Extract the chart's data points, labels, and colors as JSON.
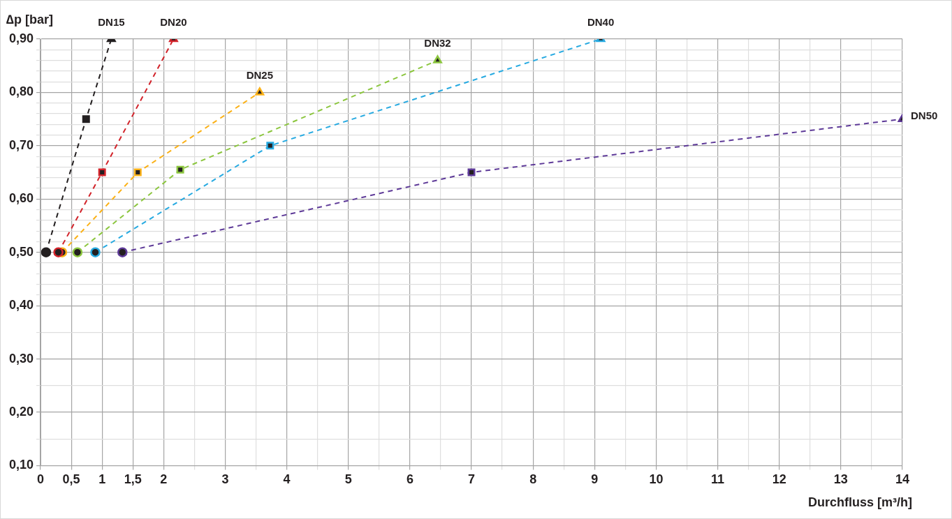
{
  "chart_data": {
    "type": "line",
    "xlabel": "Durchfluss [m³/h]",
    "ylabel": "∆p [bar]",
    "xlim": [
      0,
      14
    ],
    "ylim": [
      0.1,
      0.9
    ],
    "xticks": [
      0,
      {
        "value": 0.5,
        "label": "0,5"
      },
      1,
      {
        "value": 1.5,
        "label": "1,5"
      },
      2,
      {
        "value": 2.5,
        "label": null
      },
      3,
      {
        "value": 3.5,
        "label": null
      },
      4,
      {
        "value": 4.5,
        "label": null
      },
      5,
      {
        "value": 5.5,
        "label": null
      },
      6,
      {
        "value": 6.5,
        "label": null
      },
      7,
      {
        "value": 7.5,
        "label": null
      },
      8,
      {
        "value": 8.5,
        "label": null
      },
      9,
      {
        "value": 9.5,
        "label": null
      },
      10,
      {
        "value": 10.5,
        "label": null
      },
      11,
      {
        "value": 11.5,
        "label": null
      },
      12,
      {
        "value": 12.5,
        "label": null
      },
      13,
      {
        "value": 13.5,
        "label": null
      },
      14
    ],
    "yticks": [
      {
        "value": 0.1,
        "label": "0,10"
      },
      {
        "value": 0.15,
        "label": null
      },
      {
        "value": 0.2,
        "label": "0,20"
      },
      {
        "value": 0.25,
        "label": null
      },
      {
        "value": 0.3,
        "label": "0,30"
      },
      {
        "value": 0.35,
        "label": null
      },
      {
        "value": 0.4,
        "label": "0,40"
      },
      {
        "value": 0.42,
        "label": null
      },
      {
        "value": 0.44,
        "label": null
      },
      {
        "value": 0.46,
        "label": null
      },
      {
        "value": 0.48,
        "label": null
      },
      {
        "value": 0.5,
        "label": "0,50"
      },
      {
        "value": 0.52,
        "label": null
      },
      {
        "value": 0.54,
        "label": null
      },
      {
        "value": 0.56,
        "label": null
      },
      {
        "value": 0.58,
        "label": null
      },
      {
        "value": 0.6,
        "label": "0,60"
      },
      {
        "value": 0.62,
        "label": null
      },
      {
        "value": 0.64,
        "label": null
      },
      {
        "value": 0.66,
        "label": null
      },
      {
        "value": 0.68,
        "label": null
      },
      {
        "value": 0.7,
        "label": "0,70"
      },
      {
        "value": 0.72,
        "label": null
      },
      {
        "value": 0.74,
        "label": null
      },
      {
        "value": 0.76,
        "label": null
      },
      {
        "value": 0.78,
        "label": null
      },
      {
        "value": 0.8,
        "label": "0,80"
      },
      {
        "value": 0.82,
        "label": null
      },
      {
        "value": 0.84,
        "label": null
      },
      {
        "value": 0.86,
        "label": null
      },
      {
        "value": 0.88,
        "label": null
      },
      {
        "value": 0.9,
        "label": "0,90"
      }
    ],
    "grid": true,
    "marker": [
      "circle",
      "square",
      "triangle"
    ],
    "line_style": "dashed",
    "series": [
      {
        "name": "DN15",
        "color": "#231f20",
        "x": [
          0.09,
          0.74,
          1.15
        ],
        "values": [
          0.5,
          0.75,
          0.9
        ]
      },
      {
        "name": "DN20",
        "color": "#d2232a",
        "x": [
          0.29,
          1.0,
          2.16
        ],
        "values": [
          0.5,
          0.65,
          0.9
        ]
      },
      {
        "name": "DN25",
        "color": "#fbb116",
        "x": [
          0.35,
          1.58,
          3.56
        ],
        "values": [
          0.5,
          0.65,
          0.8
        ]
      },
      {
        "name": "DN32",
        "color": "#8cc63f",
        "x": [
          0.6,
          2.27,
          6.45
        ],
        "values": [
          0.5,
          0.655,
          0.86
        ]
      },
      {
        "name": "DN40",
        "color": "#27aae1",
        "x": [
          0.89,
          3.73,
          9.1
        ],
        "values": [
          0.5,
          0.7,
          0.9
        ]
      },
      {
        "name": "DN50",
        "color": "#5e3a98",
        "x": [
          1.33,
          7.0,
          14
        ],
        "values": [
          0.5,
          0.65,
          0.75
        ]
      }
    ]
  }
}
